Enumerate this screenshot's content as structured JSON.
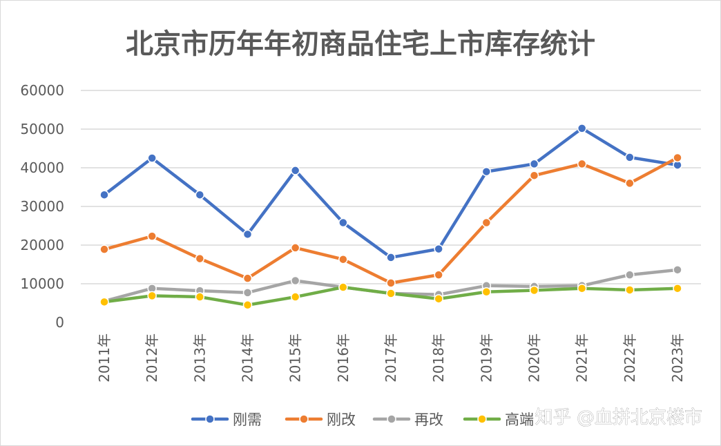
{
  "chart_data": {
    "type": "line",
    "title": "北京市历年年初商品住宅上市库存统计",
    "categories": [
      "2011年",
      "2012年",
      "2013年",
      "2014年",
      "2015年",
      "2016年",
      "2017年",
      "2018年",
      "2019年",
      "2020年",
      "2021年",
      "2022年",
      "2023年"
    ],
    "ylim": [
      0,
      60000
    ],
    "yticks": [
      0,
      10000,
      20000,
      30000,
      40000,
      50000,
      60000
    ],
    "grid": true,
    "legend_position": "bottom",
    "series": [
      {
        "name": "刚需",
        "color": "#4472c4",
        "marker_color": "#4472c4",
        "values": [
          33000,
          42500,
          33000,
          22800,
          39300,
          25800,
          16800,
          19000,
          39000,
          41000,
          50200,
          42700,
          40700
        ]
      },
      {
        "name": "刚改",
        "color": "#ed7d31",
        "marker_color": "#ed7d31",
        "values": [
          18900,
          22300,
          16500,
          11400,
          19300,
          16300,
          10200,
          12300,
          25800,
          38000,
          41000,
          36000,
          42600
        ]
      },
      {
        "name": "再改",
        "color": "#a5a5a5",
        "marker_color": "#a5a5a5",
        "values": [
          5500,
          8800,
          8200,
          7700,
          10800,
          9100,
          7500,
          7200,
          9500,
          9300,
          9500,
          12300,
          13600
        ]
      },
      {
        "name": "高端",
        "color": "#70ad47",
        "marker_color": "#ffc000",
        "values": [
          5300,
          6900,
          6600,
          4500,
          6600,
          9100,
          7500,
          6100,
          7900,
          8300,
          8800,
          8400,
          8800
        ]
      }
    ]
  },
  "watermark": "知乎 @血拼北京楼市"
}
